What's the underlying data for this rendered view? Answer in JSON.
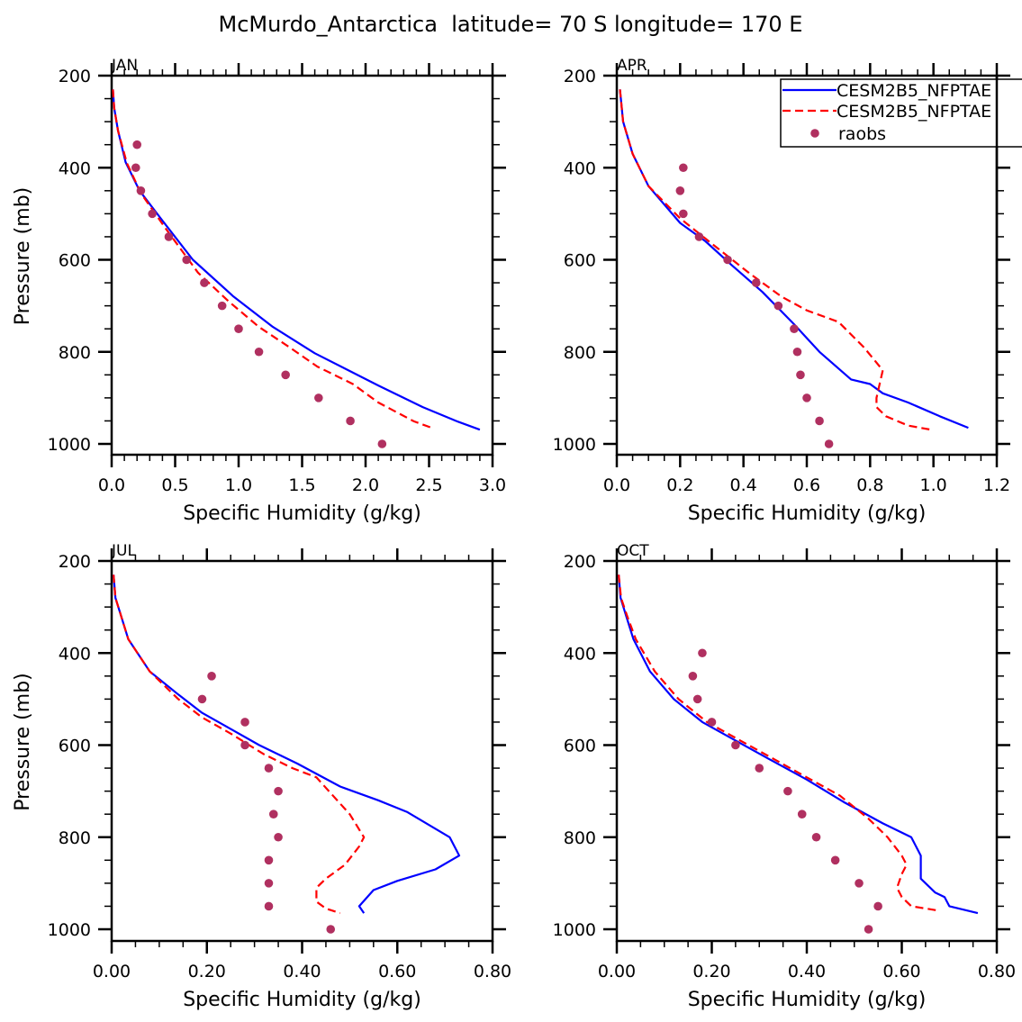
{
  "figure_title": "McMurdo_Antarctica  latitude= 70 S longitude= 170 E",
  "legend": {
    "entries": [
      {
        "label": "CESM2B5_NFPTAE",
        "style": "solid",
        "color": "#0000ff"
      },
      {
        "label": "CESM2B5_NFPTAE",
        "style": "dashed",
        "color": "#ff0000"
      },
      {
        "label": "raobs",
        "style": "marker",
        "color": "#b03060"
      }
    ],
    "placement": "top-right of APR panel"
  },
  "colors": {
    "model_solid": "#0000ff",
    "model_dashed": "#ff0000",
    "raobs": "#b03060",
    "axis": "#000000"
  },
  "chart_data": [
    {
      "type": "line",
      "panel": "JAN",
      "title": "JAN",
      "xlabel": "Specific Humidity (g/kg)",
      "ylabel": "Pressure (mb)",
      "xlim": [
        0,
        3.0
      ],
      "ylim": [
        1025,
        200
      ],
      "y_inverted": true,
      "xticks": [
        0,
        0.5,
        1.0,
        1.5,
        2.0,
        2.5,
        3.0
      ],
      "xtick_labels": [
        "0.0",
        "0.5",
        "1.0",
        "1.5",
        "2.0",
        "2.5",
        "3.0"
      ],
      "yticks": [
        200,
        400,
        600,
        800,
        1000
      ],
      "ytick_labels": [
        "200",
        "400",
        "600",
        "800",
        "1000"
      ],
      "x_minor_per_major": 5,
      "series": [
        {
          "name": "CESM2B5_NFPTAE",
          "style": "solid",
          "x": [
            0.01,
            0.02,
            0.05,
            0.11,
            0.22,
            0.4,
            0.64,
            0.96,
            1.27,
            1.6,
            2.1,
            2.45,
            2.72,
            2.9
          ],
          "y": [
            230,
            270,
            320,
            388,
            450,
            515,
            600,
            680,
            746,
            803,
            873,
            920,
            951,
            969
          ]
        },
        {
          "name": "CESM2B5_NFPTAE",
          "style": "dashed",
          "x": [
            0.01,
            0.02,
            0.05,
            0.12,
            0.23,
            0.42,
            0.68,
            0.92,
            1.16,
            1.4,
            1.62,
            1.9,
            2.1,
            2.38,
            2.54
          ],
          "y": [
            230,
            270,
            320,
            390,
            455,
            530,
            628,
            690,
            746,
            790,
            832,
            870,
            910,
            951,
            967
          ]
        },
        {
          "name": "raobs",
          "style": "marker",
          "x": [
            0.2,
            0.19,
            0.23,
            0.32,
            0.45,
            0.59,
            0.73,
            0.87,
            1.0,
            1.16,
            1.37,
            1.63,
            1.88,
            2.13
          ],
          "y": [
            350,
            400,
            450,
            500,
            550,
            600,
            650,
            700,
            750,
            800,
            850,
            900,
            950,
            1000
          ]
        }
      ]
    },
    {
      "type": "line",
      "panel": "APR",
      "title": "APR",
      "xlabel": "Specific Humidity (g/kg)",
      "ylabel": "Pressure (mb)",
      "xlim": [
        0,
        1.2
      ],
      "ylim": [
        1025,
        200
      ],
      "y_inverted": true,
      "xticks": [
        0,
        0.2,
        0.4,
        0.6,
        0.8,
        1.0,
        1.2
      ],
      "xtick_labels": [
        "0.0",
        "0.2",
        "0.4",
        "0.6",
        "0.8",
        "1.0",
        "1.2"
      ],
      "yticks": [
        200,
        400,
        600,
        800,
        1000
      ],
      "ytick_labels": [
        "200",
        "400",
        "600",
        "800",
        "1000"
      ],
      "x_minor_per_major": 4,
      "series": [
        {
          "name": "CESM2B5_NFPTAE",
          "style": "solid",
          "x": [
            0.01,
            0.02,
            0.05,
            0.1,
            0.2,
            0.28,
            0.36,
            0.46,
            0.56,
            0.64,
            0.74,
            0.8,
            0.84,
            0.92,
            1.02,
            1.11
          ],
          "y": [
            230,
            300,
            370,
            440,
            520,
            560,
            610,
            670,
            740,
            800,
            860,
            870,
            890,
            910,
            940,
            965
          ]
        },
        {
          "name": "CESM2B5_NFPTAE",
          "style": "dashed",
          "x": [
            0.01,
            0.02,
            0.05,
            0.1,
            0.2,
            0.3,
            0.42,
            0.52,
            0.6,
            0.7,
            0.78,
            0.84,
            0.83,
            0.82,
            0.82,
            0.85,
            0.92,
            1.0
          ],
          "y": [
            230,
            300,
            370,
            440,
            510,
            565,
            630,
            680,
            710,
            735,
            790,
            840,
            870,
            900,
            920,
            940,
            960,
            970
          ]
        },
        {
          "name": "raobs",
          "style": "marker",
          "x": [
            0.21,
            0.2,
            0.21,
            0.26,
            0.35,
            0.44,
            0.51,
            0.56,
            0.57,
            0.58,
            0.6,
            0.64,
            0.67
          ],
          "y": [
            400,
            450,
            500,
            550,
            600,
            650,
            700,
            750,
            800,
            850,
            900,
            950,
            1000
          ]
        }
      ]
    },
    {
      "type": "line",
      "panel": "JUL",
      "title": "JUL",
      "xlabel": "Specific Humidity (g/kg)",
      "ylabel": "Pressure (mb)",
      "xlim": [
        0,
        0.8
      ],
      "ylim": [
        1025,
        200
      ],
      "y_inverted": true,
      "xticks": [
        0,
        0.2,
        0.4,
        0.6,
        0.8
      ],
      "xtick_labels": [
        "0.00",
        "0.20",
        "0.40",
        "0.60",
        "0.80"
      ],
      "yticks": [
        200,
        400,
        600,
        800,
        1000
      ],
      "ytick_labels": [
        "200",
        "400",
        "600",
        "800",
        "1000"
      ],
      "x_minor_per_major": 4,
      "series": [
        {
          "name": "CESM2B5_NFPTAE",
          "style": "solid",
          "x": [
            0.004,
            0.008,
            0.02,
            0.035,
            0.08,
            0.14,
            0.19,
            0.25,
            0.31,
            0.39,
            0.48,
            0.56,
            0.62,
            0.71,
            0.73,
            0.68,
            0.6,
            0.55,
            0.52,
            0.53
          ],
          "y": [
            230,
            280,
            320,
            370,
            440,
            490,
            530,
            565,
            600,
            640,
            690,
            720,
            745,
            800,
            840,
            870,
            895,
            915,
            950,
            965
          ]
        },
        {
          "name": "CESM2B5_NFPTAE",
          "style": "dashed",
          "x": [
            0.004,
            0.008,
            0.02,
            0.035,
            0.08,
            0.14,
            0.19,
            0.25,
            0.32,
            0.38,
            0.43,
            0.5,
            0.53,
            0.52,
            0.49,
            0.45,
            0.43,
            0.43,
            0.45,
            0.48
          ],
          "y": [
            230,
            280,
            320,
            370,
            440,
            500,
            540,
            575,
            620,
            650,
            670,
            750,
            800,
            820,
            860,
            890,
            910,
            940,
            955,
            965
          ]
        },
        {
          "name": "raobs",
          "style": "marker",
          "x": [
            0.21,
            0.19,
            0.28,
            0.28,
            0.33,
            0.35,
            0.34,
            0.35,
            0.33,
            0.33,
            0.33,
            0.46
          ],
          "y": [
            450,
            500,
            550,
            600,
            650,
            700,
            750,
            800,
            850,
            900,
            950,
            1000
          ]
        }
      ]
    },
    {
      "type": "line",
      "panel": "OCT",
      "title": "OCT",
      "xlabel": "Specific Humidity (g/kg)",
      "ylabel": "Pressure (mb)",
      "xlim": [
        0,
        0.8
      ],
      "ylim": [
        1025,
        200
      ],
      "y_inverted": true,
      "xticks": [
        0,
        0.2,
        0.4,
        0.6,
        0.8
      ],
      "xtick_labels": [
        "0.00",
        "0.20",
        "0.40",
        "0.60",
        "0.80"
      ],
      "yticks": [
        200,
        400,
        600,
        800,
        1000
      ],
      "ytick_labels": [
        "200",
        "400",
        "600",
        "800",
        "1000"
      ],
      "x_minor_per_major": 4,
      "series": [
        {
          "name": "CESM2B5_NFPTAE",
          "style": "solid",
          "x": [
            0.004,
            0.008,
            0.02,
            0.035,
            0.07,
            0.12,
            0.18,
            0.25,
            0.32,
            0.4,
            0.48,
            0.56,
            0.62,
            0.64,
            0.64,
            0.67,
            0.69,
            0.7,
            0.76
          ],
          "y": [
            230,
            280,
            320,
            370,
            440,
            500,
            550,
            590,
            630,
            675,
            725,
            770,
            800,
            840,
            890,
            920,
            930,
            950,
            965
          ]
        },
        {
          "name": "CESM2B5_NFPTAE",
          "style": "dashed",
          "x": [
            0.004,
            0.009,
            0.022,
            0.04,
            0.08,
            0.13,
            0.19,
            0.26,
            0.33,
            0.4,
            0.47,
            0.53,
            0.57,
            0.6,
            0.61,
            0.6,
            0.59,
            0.6,
            0.62,
            0.68
          ],
          "y": [
            230,
            280,
            320,
            370,
            440,
            500,
            550,
            590,
            630,
            670,
            710,
            760,
            800,
            840,
            860,
            880,
            910,
            930,
            950,
            960
          ]
        },
        {
          "name": "raobs",
          "style": "marker",
          "x": [
            0.18,
            0.16,
            0.17,
            0.2,
            0.25,
            0.3,
            0.36,
            0.39,
            0.42,
            0.46,
            0.51,
            0.55,
            0.53
          ],
          "y": [
            400,
            450,
            500,
            550,
            600,
            650,
            700,
            750,
            800,
            850,
            900,
            950,
            1000
          ]
        }
      ]
    }
  ]
}
